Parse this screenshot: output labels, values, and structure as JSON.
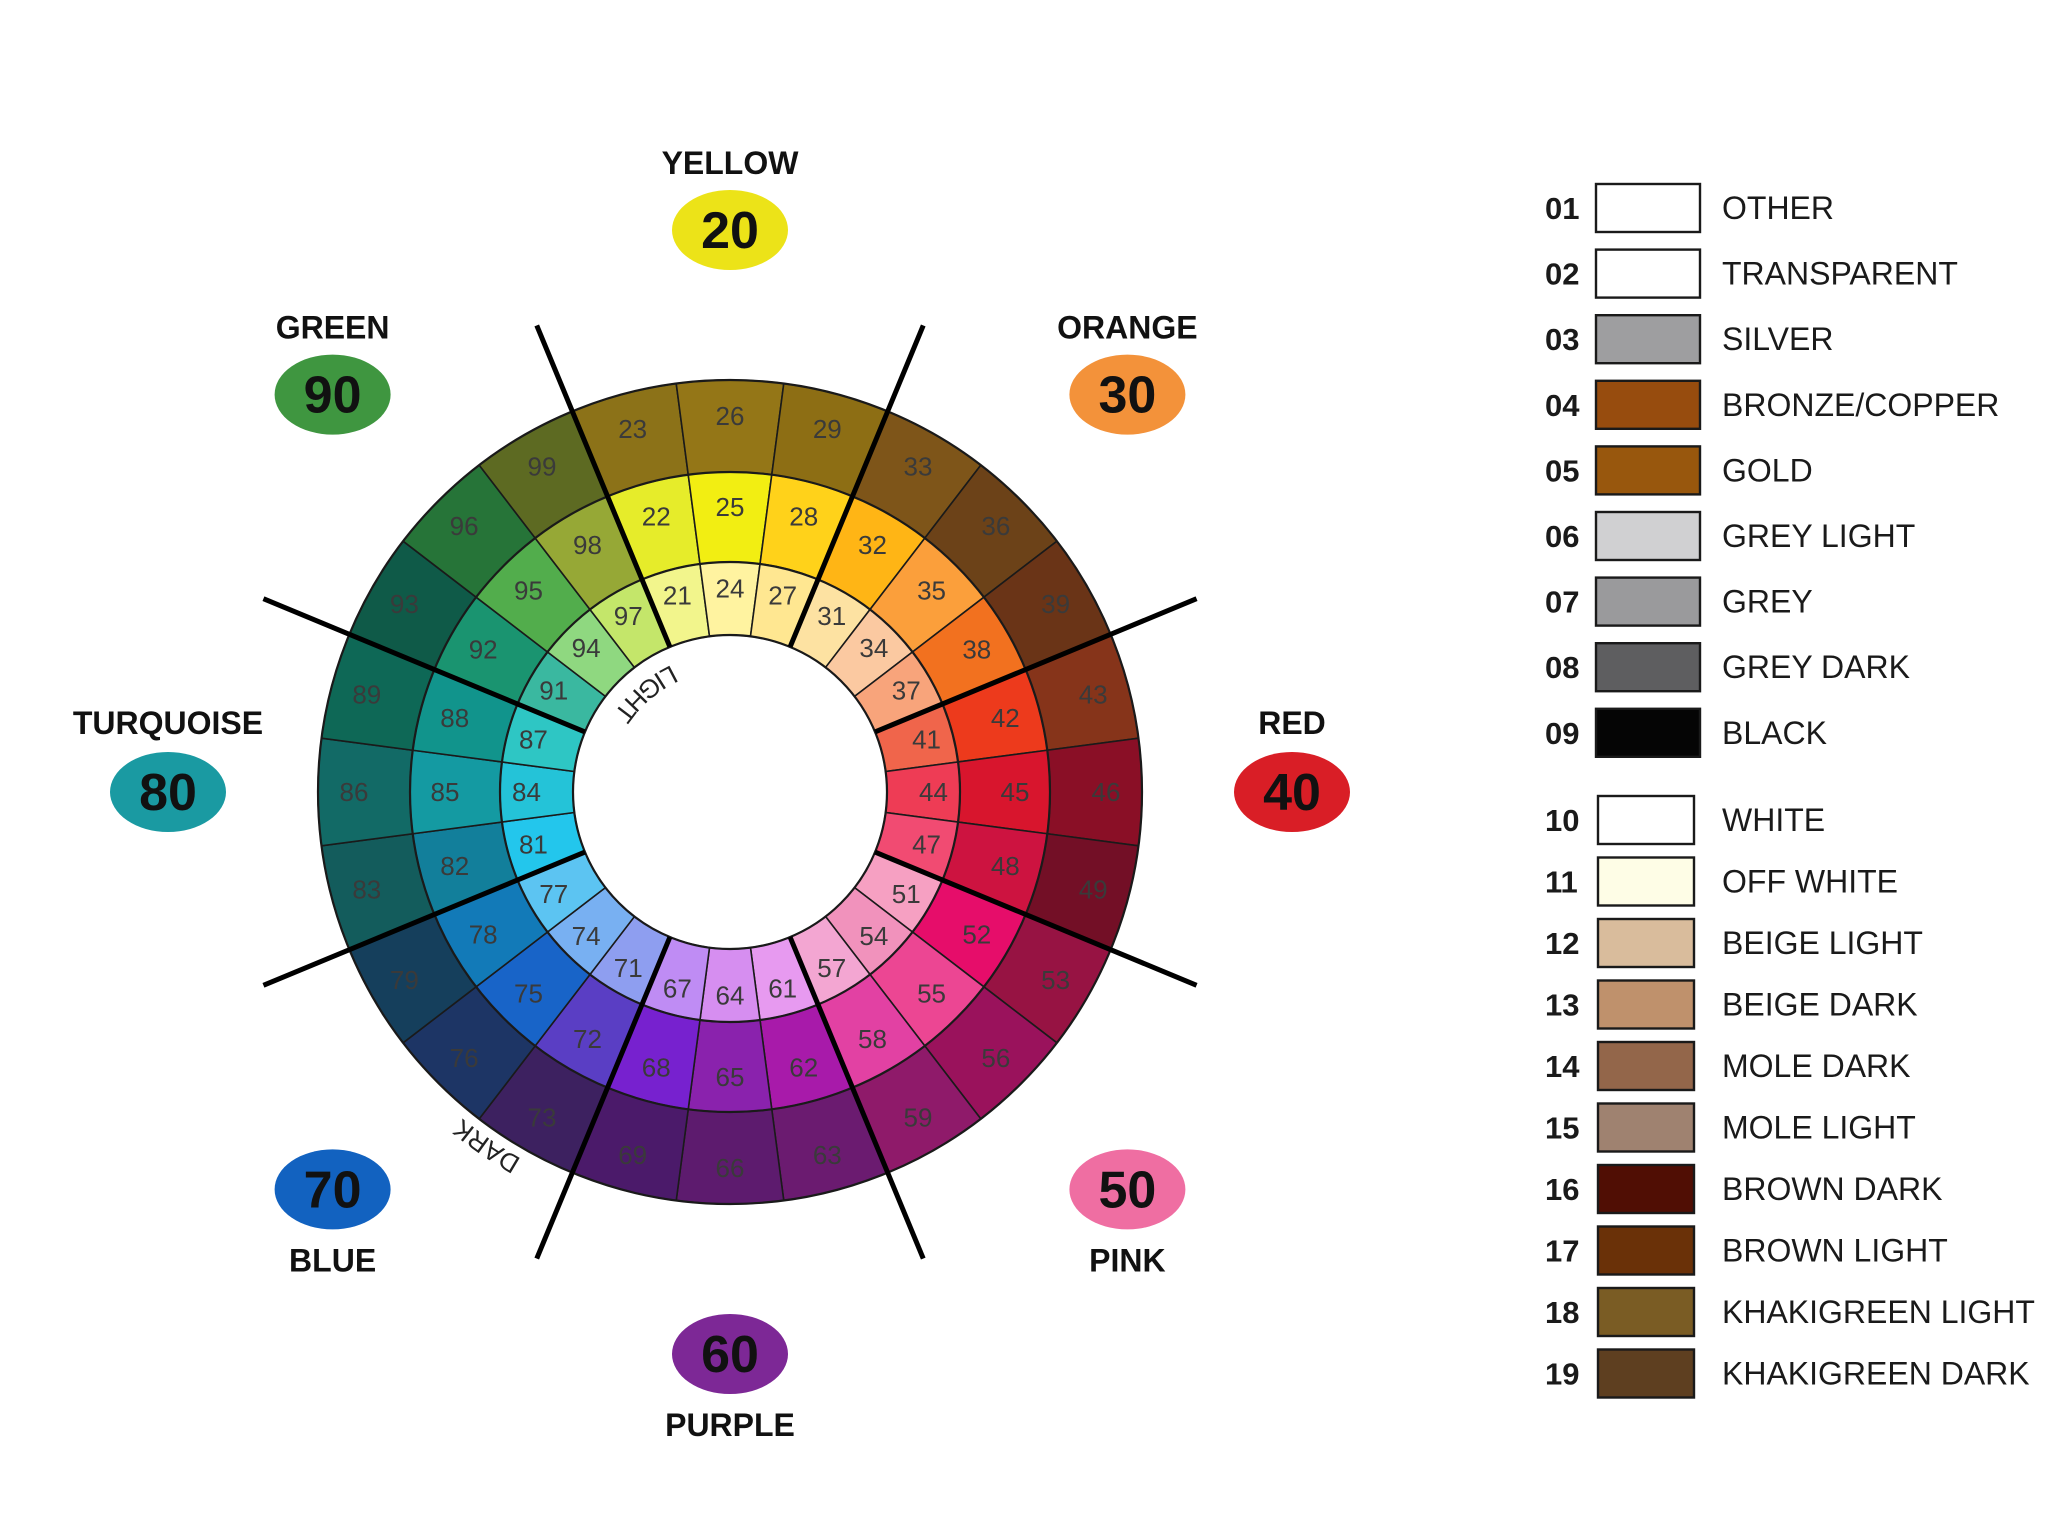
{
  "groups": [
    {
      "name": "YELLOW",
      "code": "20",
      "color": "#ece318",
      "cells": [
        {
          "n": "23",
          "c": "#8c7218"
        },
        {
          "n": "26",
          "c": "#947617"
        },
        {
          "n": "29",
          "c": "#8d6e14"
        },
        {
          "n": "22",
          "c": "#e6ec2a"
        },
        {
          "n": "25",
          "c": "#f2ee12"
        },
        {
          "n": "28",
          "c": "#ffd21a"
        },
        {
          "n": "21",
          "c": "#f2f58c"
        },
        {
          "n": "24",
          "c": "#fff3a0"
        },
        {
          "n": "27",
          "c": "#ffe791"
        }
      ]
    },
    {
      "name": "ORANGE",
      "code": "30",
      "color": "#f3923a",
      "cells": [
        {
          "n": "33",
          "c": "#7e5519"
        },
        {
          "n": "36",
          "c": "#6c4218"
        },
        {
          "n": "39",
          "c": "#6a3417"
        },
        {
          "n": "32",
          "c": "#ffb515"
        },
        {
          "n": "35",
          "c": "#fb9f3b"
        },
        {
          "n": "38",
          "c": "#f2711f"
        },
        {
          "n": "31",
          "c": "#fde2a2"
        },
        {
          "n": "34",
          "c": "#fbc9a1"
        },
        {
          "n": "37",
          "c": "#f8a47b"
        }
      ]
    },
    {
      "name": "RED",
      "code": "40",
      "color": "#d91e26",
      "cells": [
        {
          "n": "43",
          "c": "#86341a"
        },
        {
          "n": "46",
          "c": "#8a0f26"
        },
        {
          "n": "49",
          "c": "#730f26"
        },
        {
          "n": "42",
          "c": "#ed3a1c"
        },
        {
          "n": "45",
          "c": "#d8152d"
        },
        {
          "n": "48",
          "c": "#cd1340"
        },
        {
          "n": "41",
          "c": "#f0654b"
        },
        {
          "n": "44",
          "c": "#ee3c55"
        },
        {
          "n": "47",
          "c": "#f14b72"
        }
      ]
    },
    {
      "name": "PINK",
      "code": "50",
      "color": "#ef6ea2",
      "cells": [
        {
          "n": "53",
          "c": "#971343"
        },
        {
          "n": "56",
          "c": "#9a125c"
        },
        {
          "n": "59",
          "c": "#8f1a6a"
        },
        {
          "n": "52",
          "c": "#e60d6a"
        },
        {
          "n": "55",
          "c": "#ec4693"
        },
        {
          "n": "58",
          "c": "#e241a3"
        },
        {
          "n": "51",
          "c": "#f6a0c2"
        },
        {
          "n": "54",
          "c": "#f192bc"
        },
        {
          "n": "57",
          "c": "#f3a6d2"
        }
      ]
    },
    {
      "name": "PURPLE",
      "code": "60",
      "color": "#7d2896",
      "cells": [
        {
          "n": "63",
          "c": "#6b1b70"
        },
        {
          "n": "66",
          "c": "#5d1b6e"
        },
        {
          "n": "69",
          "c": "#4b1a6a"
        },
        {
          "n": "62",
          "c": "#a81aaa"
        },
        {
          "n": "65",
          "c": "#8a22ad"
        },
        {
          "n": "68",
          "c": "#7721cf"
        },
        {
          "n": "61",
          "c": "#e79af0"
        },
        {
          "n": "64",
          "c": "#d68ef0"
        },
        {
          "n": "67",
          "c": "#bf8cf4"
        }
      ]
    },
    {
      "name": "BLUE",
      "code": "70",
      "color": "#1262c0",
      "cells": [
        {
          "n": "73",
          "c": "#3d2160"
        },
        {
          "n": "76",
          "c": "#1d3565"
        },
        {
          "n": "79",
          "c": "#153f5c"
        },
        {
          "n": "72",
          "c": "#5a3ec4"
        },
        {
          "n": "75",
          "c": "#1864c8"
        },
        {
          "n": "78",
          "c": "#127ab8"
        },
        {
          "n": "71",
          "c": "#8e9ef0"
        },
        {
          "n": "74",
          "c": "#78b0f2"
        },
        {
          "n": "77",
          "c": "#5cc4f2"
        }
      ]
    },
    {
      "name": "TURQUOISE",
      "code": "80",
      "color": "#1a9aa2",
      "cells": [
        {
          "n": "83",
          "c": "#135c5c"
        },
        {
          "n": "86",
          "c": "#126a66"
        },
        {
          "n": "89",
          "c": "#0e6856"
        },
        {
          "n": "82",
          "c": "#127f9b"
        },
        {
          "n": "85",
          "c": "#149aa2"
        },
        {
          "n": "88",
          "c": "#11948c"
        },
        {
          "n": "81",
          "c": "#23c6ec"
        },
        {
          "n": "84",
          "c": "#24c3d8"
        },
        {
          "n": "87",
          "c": "#2ec6c4"
        }
      ]
    },
    {
      "name": "GREEN",
      "code": "90",
      "color": "#3f9640",
      "cells": [
        {
          "n": "93",
          "c": "#0f5a48"
        },
        {
          "n": "96",
          "c": "#267438"
        },
        {
          "n": "99",
          "c": "#5d6a22"
        },
        {
          "n": "92",
          "c": "#1a9470"
        },
        {
          "n": "95",
          "c": "#52ad4c"
        },
        {
          "n": "98",
          "c": "#96a836"
        },
        {
          "n": "91",
          "c": "#3ab8a0"
        },
        {
          "n": "94",
          "c": "#8fd880"
        },
        {
          "n": "97",
          "c": "#c4e66a"
        }
      ]
    }
  ],
  "ring_labels": {
    "light": "LIGHT",
    "dark": "DARK"
  },
  "legend": [
    {
      "code": "01",
      "name": "OTHER",
      "color": "#ffffff"
    },
    {
      "code": "02",
      "name": "TRANSPARENT",
      "color": "#ffffff"
    },
    {
      "code": "03",
      "name": "SILVER",
      "color": "#9e9ea0"
    },
    {
      "code": "04",
      "name": "BRONZE/COPPER",
      "color": "#974c0e"
    },
    {
      "code": "05",
      "name": "GOLD",
      "color": "#98570d"
    },
    {
      "code": "06",
      "name": "GREY LIGHT",
      "color": "#d0d0d2"
    },
    {
      "code": "07",
      "name": "GREY",
      "color": "#9a9a9c"
    },
    {
      "code": "08",
      "name": "GREY DARK",
      "color": "#5e5e60"
    },
    {
      "code": "09",
      "name": "BLACK",
      "color": "#050505"
    },
    {
      "code": "10",
      "name": "WHITE",
      "color": "#ffffff"
    },
    {
      "code": "11",
      "name": "OFF WHITE",
      "color": "#fefde6"
    },
    {
      "code": "12",
      "name": "BEIGE LIGHT",
      "color": "#d9bc9c"
    },
    {
      "code": "13",
      "name": "BEIGE DARK",
      "color": "#bf916c"
    },
    {
      "code": "14",
      "name": "MOLE DARK",
      "color": "#93664a"
    },
    {
      "code": "15",
      "name": "MOLE LIGHT",
      "color": "#9f8270"
    },
    {
      "code": "16",
      "name": "BROWN DARK",
      "color": "#500e04"
    },
    {
      "code": "17",
      "name": "BROWN LIGHT",
      "color": "#6a3108"
    },
    {
      "code": "18",
      "name": "KHAKIGREEN LIGHT",
      "color": "#7a5c24"
    },
    {
      "code": "19",
      "name": "KHAKIGREEN DARK",
      "color": "#5e3f20"
    }
  ]
}
